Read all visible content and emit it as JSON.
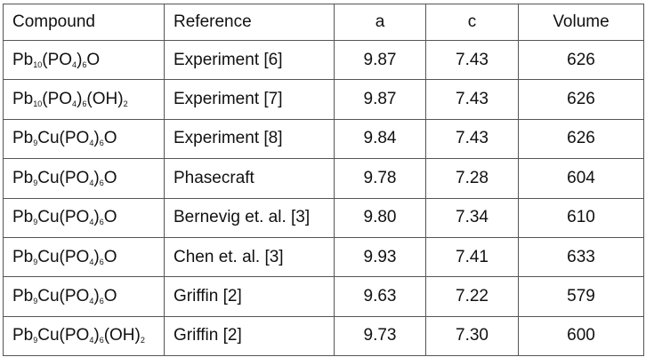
{
  "table": {
    "header": [
      "Compound",
      "Reference",
      "a",
      "c",
      "Volume"
    ],
    "rows": [
      [
        [
          {
            "text": "Pb"
          },
          {
            "sub": "10"
          },
          {
            "text": "(PO"
          },
          {
            "sub": "4"
          },
          {
            "text": ")"
          },
          {
            "sub": "6"
          },
          {
            "text": "O"
          }
        ],
        "Experiment [6]",
        "9.87",
        "7.43",
        "626"
      ],
      [
        [
          {
            "text": "Pb"
          },
          {
            "sub": "10"
          },
          {
            "text": "(PO"
          },
          {
            "sub": "4"
          },
          {
            "text": ")"
          },
          {
            "sub": "6"
          },
          {
            "text": "(OH)"
          },
          {
            "sub": "2"
          }
        ],
        "Experiment [7]",
        "9.87",
        "7.43",
        "626"
      ],
      [
        [
          {
            "text": "Pb"
          },
          {
            "sub": "9"
          },
          {
            "text": "Cu(PO"
          },
          {
            "sub": "4"
          },
          {
            "text": ")"
          },
          {
            "sub": "6"
          },
          {
            "text": "O"
          }
        ],
        "Experiment [8]",
        "9.84",
        "7.43",
        "626"
      ],
      [
        [
          {
            "text": "Pb"
          },
          {
            "sub": "9"
          },
          {
            "text": "Cu(PO"
          },
          {
            "sub": "4"
          },
          {
            "text": ")"
          },
          {
            "sub": "6"
          },
          {
            "text": "O"
          }
        ],
        "Phasecraft",
        "9.78",
        "7.28",
        "604"
      ],
      [
        [
          {
            "text": "Pb"
          },
          {
            "sub": "9"
          },
          {
            "text": "Cu(PO"
          },
          {
            "sub": "4"
          },
          {
            "text": ")"
          },
          {
            "sub": "6"
          },
          {
            "text": "O"
          }
        ],
        "Bernevig et. al. [3]",
        "9.80",
        "7.34",
        "610"
      ],
      [
        [
          {
            "text": "Pb"
          },
          {
            "sub": "9"
          },
          {
            "text": "Cu(PO"
          },
          {
            "sub": "4"
          },
          {
            "text": ")"
          },
          {
            "sub": "6"
          },
          {
            "text": "O"
          }
        ],
        "Chen et. al. [3]",
        "9.93",
        "7.41",
        "633"
      ],
      [
        [
          {
            "text": "Pb"
          },
          {
            "sub": "9"
          },
          {
            "text": "Cu(PO"
          },
          {
            "sub": "4"
          },
          {
            "text": ")"
          },
          {
            "sub": "6"
          },
          {
            "text": "O"
          }
        ],
        "Griffin [2]",
        "9.63",
        "7.22",
        "579"
      ],
      [
        [
          {
            "text": "Pb"
          },
          {
            "sub": "9"
          },
          {
            "text": "Cu(PO"
          },
          {
            "sub": "4"
          },
          {
            "text": ")"
          },
          {
            "sub": "6"
          },
          {
            "text": "(OH)"
          },
          {
            "sub": "2"
          }
        ],
        "Griffin [2]",
        "9.73",
        "7.30",
        "600"
      ]
    ]
  }
}
